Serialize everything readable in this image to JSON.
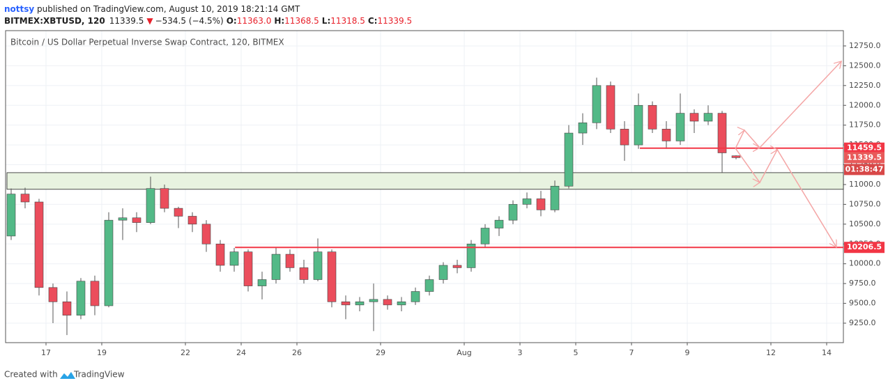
{
  "header": {
    "user": "nottsy",
    "published": " published on TradingView.com, August 10, 2019 18:21:14 GMT",
    "symbol": "BITMEX:XBTUSD, 120",
    "last": "11339.5",
    "arrow": "▼",
    "change": "−534.5 (−4.5%)",
    "ohlc": [
      {
        "key": "O:",
        "value": "11363.0"
      },
      {
        "key": "H:",
        "value": "11368.5"
      },
      {
        "key": "L:",
        "value": "11318.5"
      },
      {
        "key": "C:",
        "value": "11339.5"
      }
    ]
  },
  "chart_data": {
    "type": "candlestick",
    "title": "Bitcoin / US Dollar Perpetual Inverse Swap Contract, 120, BITMEX",
    "up_color": "#53b987",
    "down_color": "#eb4d5c",
    "grid": true,
    "xlim": [
      15.55,
      45.6
    ],
    "ylim": [
      9004,
      12943
    ],
    "xticks": [
      17,
      19,
      22,
      24,
      26,
      29,
      {
        "value": 32,
        "label": "Aug"
      },
      {
        "value": 34,
        "label": "3"
      },
      {
        "value": 36,
        "label": "5"
      },
      {
        "value": 38,
        "label": "7"
      },
      {
        "value": 40,
        "label": "9"
      },
      {
        "value": 43,
        "label": "12"
      },
      {
        "value": 45,
        "label": "14"
      }
    ],
    "yticks": [
      {
        "value": 9250,
        "label": "9250.0"
      },
      {
        "value": 9500,
        "label": "9500.0"
      },
      {
        "value": 9750,
        "label": "9750.0"
      },
      {
        "value": 10000,
        "label": "10000.0"
      },
      {
        "value": 10250,
        "label": "10250.0"
      },
      {
        "value": 10500,
        "label": "10500.0"
      },
      {
        "value": 10750,
        "label": "10750.0"
      },
      {
        "value": 11000,
        "label": "11000.0"
      },
      {
        "value": 11250,
        "label": "11250.0"
      },
      {
        "value": 11500,
        "label": "11500.0"
      },
      {
        "value": 11750,
        "label": "11750.0"
      },
      {
        "value": 12000,
        "label": "12000.0"
      },
      {
        "value": 12250,
        "label": "12250.0"
      },
      {
        "value": 12500,
        "label": "12500.0"
      },
      {
        "value": 12750,
        "label": "12750.0"
      }
    ],
    "x": [
      15.75,
      16.25,
      16.75,
      17.25,
      17.75,
      18.25,
      18.75,
      19.25,
      19.75,
      20.25,
      20.75,
      21.25,
      21.75,
      22.25,
      22.75,
      23.25,
      23.75,
      24.25,
      24.75,
      25.25,
      25.75,
      26.25,
      26.75,
      27.25,
      27.75,
      28.25,
      28.75,
      29.25,
      29.75,
      30.25,
      30.75,
      31.25,
      31.75,
      32.25,
      32.75,
      33.25,
      33.75,
      34.25,
      34.75,
      35.25,
      35.75,
      36.25,
      36.75,
      37.25,
      37.75,
      38.25,
      38.75,
      39.25,
      39.75,
      40.25,
      40.75,
      41.25,
      41.75
    ],
    "open": [
      10350,
      10880,
      10780,
      9700,
      9520,
      9350,
      9780,
      9470,
      10550,
      10580,
      10520,
      10950,
      10700,
      10600,
      10500,
      10250,
      9980,
      10150,
      9720,
      9800,
      10120,
      9950,
      9800,
      10150,
      9520,
      9480,
      9520,
      9550,
      9480,
      9520,
      9650,
      9800,
      9980,
      9950,
      10250,
      10450,
      10550,
      10750,
      10820,
      10680,
      10980,
      11650,
      11780,
      12250,
      11700,
      11500,
      12000,
      11700,
      11550,
      11900,
      11800,
      11900,
      11363
    ],
    "high": [
      10950,
      10960,
      10820,
      9750,
      9650,
      9820,
      9850,
      10650,
      10700,
      10650,
      11100,
      11000,
      10720,
      10650,
      10550,
      10300,
      10200,
      10180,
      9900,
      10200,
      10180,
      10050,
      10320,
      10180,
      9600,
      9580,
      9750,
      9600,
      9580,
      9700,
      9850,
      10020,
      10050,
      10300,
      10500,
      10600,
      10800,
      10900,
      10920,
      11050,
      11750,
      11900,
      12350,
      12300,
      11800,
      12150,
      12050,
      11800,
      12150,
      11950,
      12000,
      11930,
      11368.5
    ],
    "low": [
      10300,
      10700,
      9600,
      9250,
      9100,
      9300,
      9350,
      9450,
      10300,
      10400,
      10500,
      10650,
      10450,
      10400,
      10150,
      9900,
      9900,
      9650,
      9550,
      9750,
      9900,
      9750,
      9780,
      9450,
      9300,
      9400,
      9150,
      9420,
      9400,
      9480,
      9600,
      9750,
      9880,
      9900,
      10200,
      10350,
      10500,
      10700,
      10600,
      10650,
      10950,
      11500,
      11700,
      11650,
      11300,
      11450,
      11650,
      11450,
      11500,
      11650,
      11750,
      11150,
      11318.5
    ],
    "close": [
      10880,
      10780,
      9700,
      9520,
      9350,
      9780,
      9470,
      10550,
      10580,
      10520,
      10950,
      10700,
      10600,
      10500,
      10250,
      9980,
      10150,
      9720,
      9800,
      10120,
      9950,
      9800,
      10150,
      9520,
      9480,
      9520,
      9550,
      9480,
      9520,
      9650,
      9800,
      9980,
      9950,
      10250,
      10450,
      10550,
      10750,
      10820,
      10680,
      10980,
      11650,
      11780,
      12250,
      11700,
      11500,
      12000,
      11700,
      11550,
      11900,
      11800,
      11900,
      11400,
      11339.5
    ],
    "zone": {
      "low": 10940,
      "high": 11150,
      "from": 15.6,
      "color": "#e8f3e0"
    },
    "levels": [
      {
        "value": 11459.5,
        "from": 38.3,
        "color": "#f23645"
      },
      {
        "value": 10206.5,
        "from": 23.78,
        "color": "#f23645"
      }
    ],
    "last_label_color": "#e85a5a",
    "countdown": {
      "label": "01:38:47",
      "color": "#d84848"
    },
    "projections": [
      {
        "x": [
          41.73,
          42.05,
          42.6,
          45.53
        ],
        "y": [
          11457,
          11686,
          11466,
          12557
        ]
      },
      {
        "x": [
          41.73,
          42.6,
          43.23,
          45.35
        ],
        "y": [
          11457,
          11026,
          11440,
          10209
        ]
      }
    ],
    "projection_color": "#f4a6a6"
  },
  "footer": {
    "created": "Created with",
    "brand": "TradingView"
  }
}
